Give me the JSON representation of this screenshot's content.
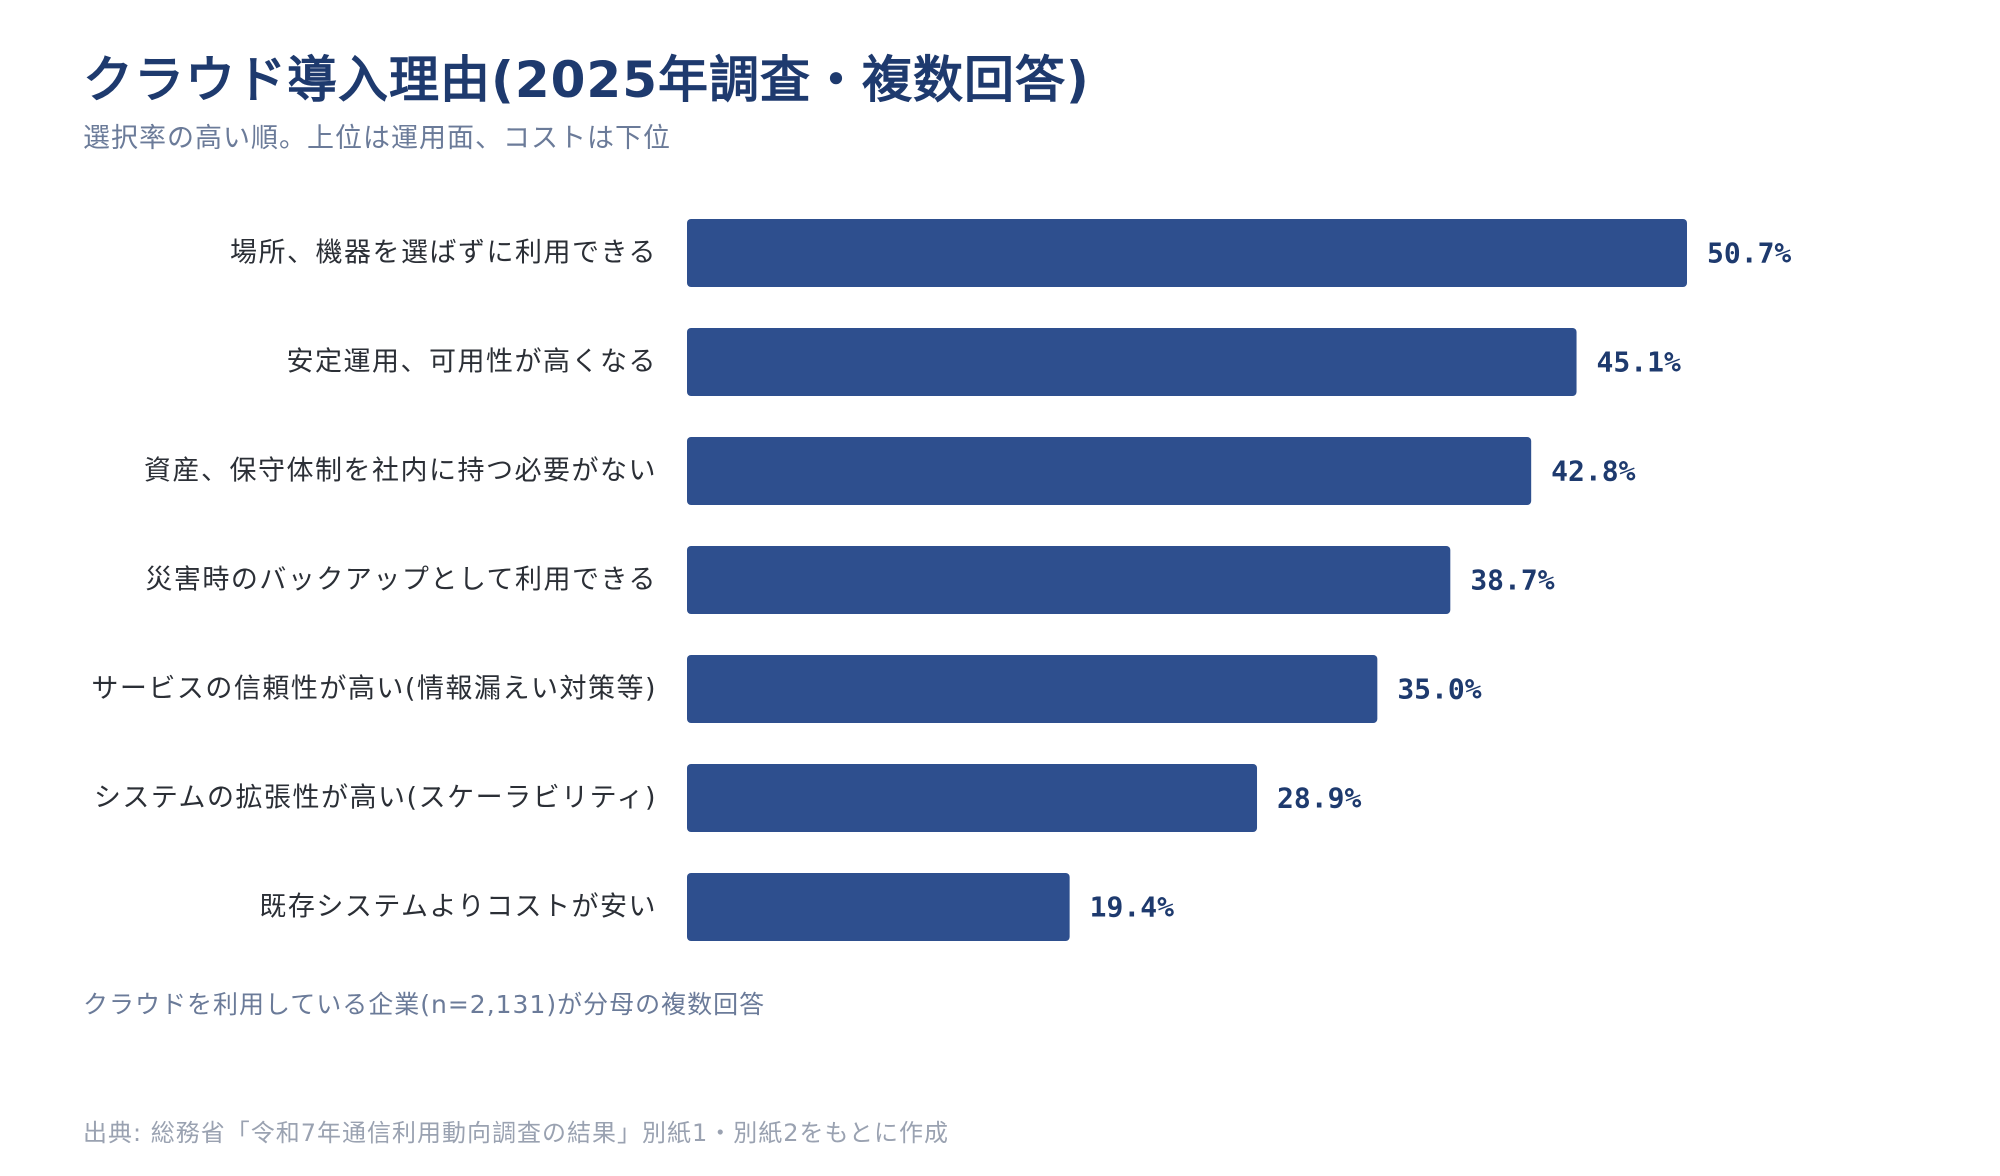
{
  "title": "クラウド導入理由(2025年調査・複数回答)",
  "subtitle": "選択率の高い順。上位は運用面、コストは下位",
  "note": "クラウドを利用している企業(n=2,131)が分母の複数回答",
  "source": "出典: 総務省「令和7年通信利用動向調査の結果」別紙1・別紙2をもとに作成",
  "colors": {
    "bar": "#2e4f8e",
    "title": "#1e3a6e",
    "value_label": "#1e3a6e"
  },
  "chart_data": {
    "type": "bar",
    "orientation": "horizontal",
    "categories": [
      "場所、機器を選ばずに利用できる",
      "安定運用、可用性が高くなる",
      "資産、保守体制を社内に持つ必要がない",
      "災害時のバックアップとして利用できる",
      "サービスの信頼性が高い(情報漏えい対策等)",
      "システムの拡張性が高い(スケーラビリティ)",
      "既存システムよりコストが安い"
    ],
    "values": [
      50.7,
      45.1,
      42.8,
      38.7,
      35.0,
      28.9,
      19.4
    ],
    "value_labels": [
      "50.7%",
      "45.1%",
      "42.8%",
      "38.7%",
      "35.0%",
      "28.9%",
      "19.4%"
    ],
    "unit": "%",
    "xlim": [
      0,
      50.7
    ],
    "grid": false,
    "legend": "none"
  }
}
